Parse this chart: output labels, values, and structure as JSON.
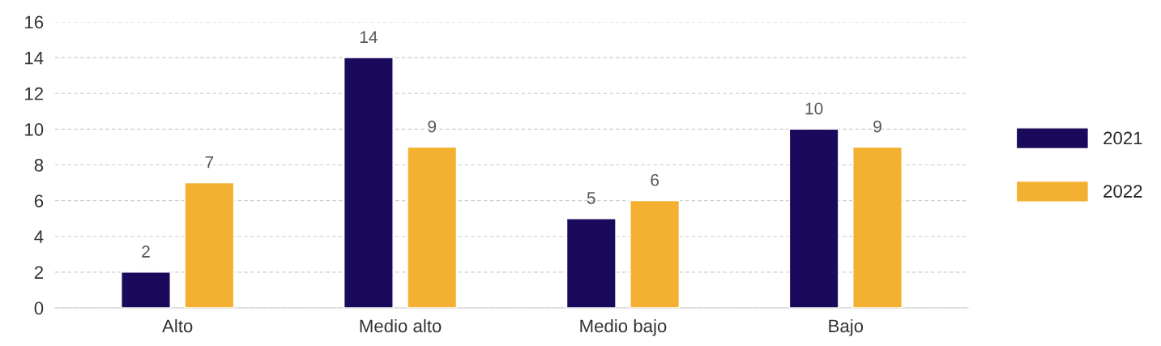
{
  "chart_data": {
    "type": "bar",
    "categories": [
      "Alto",
      "Medio alto",
      "Medio bajo",
      "Bajo"
    ],
    "series": [
      {
        "name": "2021",
        "color": "#1b0a5c",
        "values": [
          2,
          14,
          5,
          10
        ]
      },
      {
        "name": "2022",
        "color": "#f3b031",
        "values": [
          7,
          9,
          6,
          9
        ]
      }
    ],
    "ylim": [
      0,
      16
    ],
    "yticks": [
      0,
      2,
      4,
      6,
      8,
      10,
      12,
      14,
      16
    ],
    "grid": "y",
    "legend": "right",
    "data_labels": true
  }
}
